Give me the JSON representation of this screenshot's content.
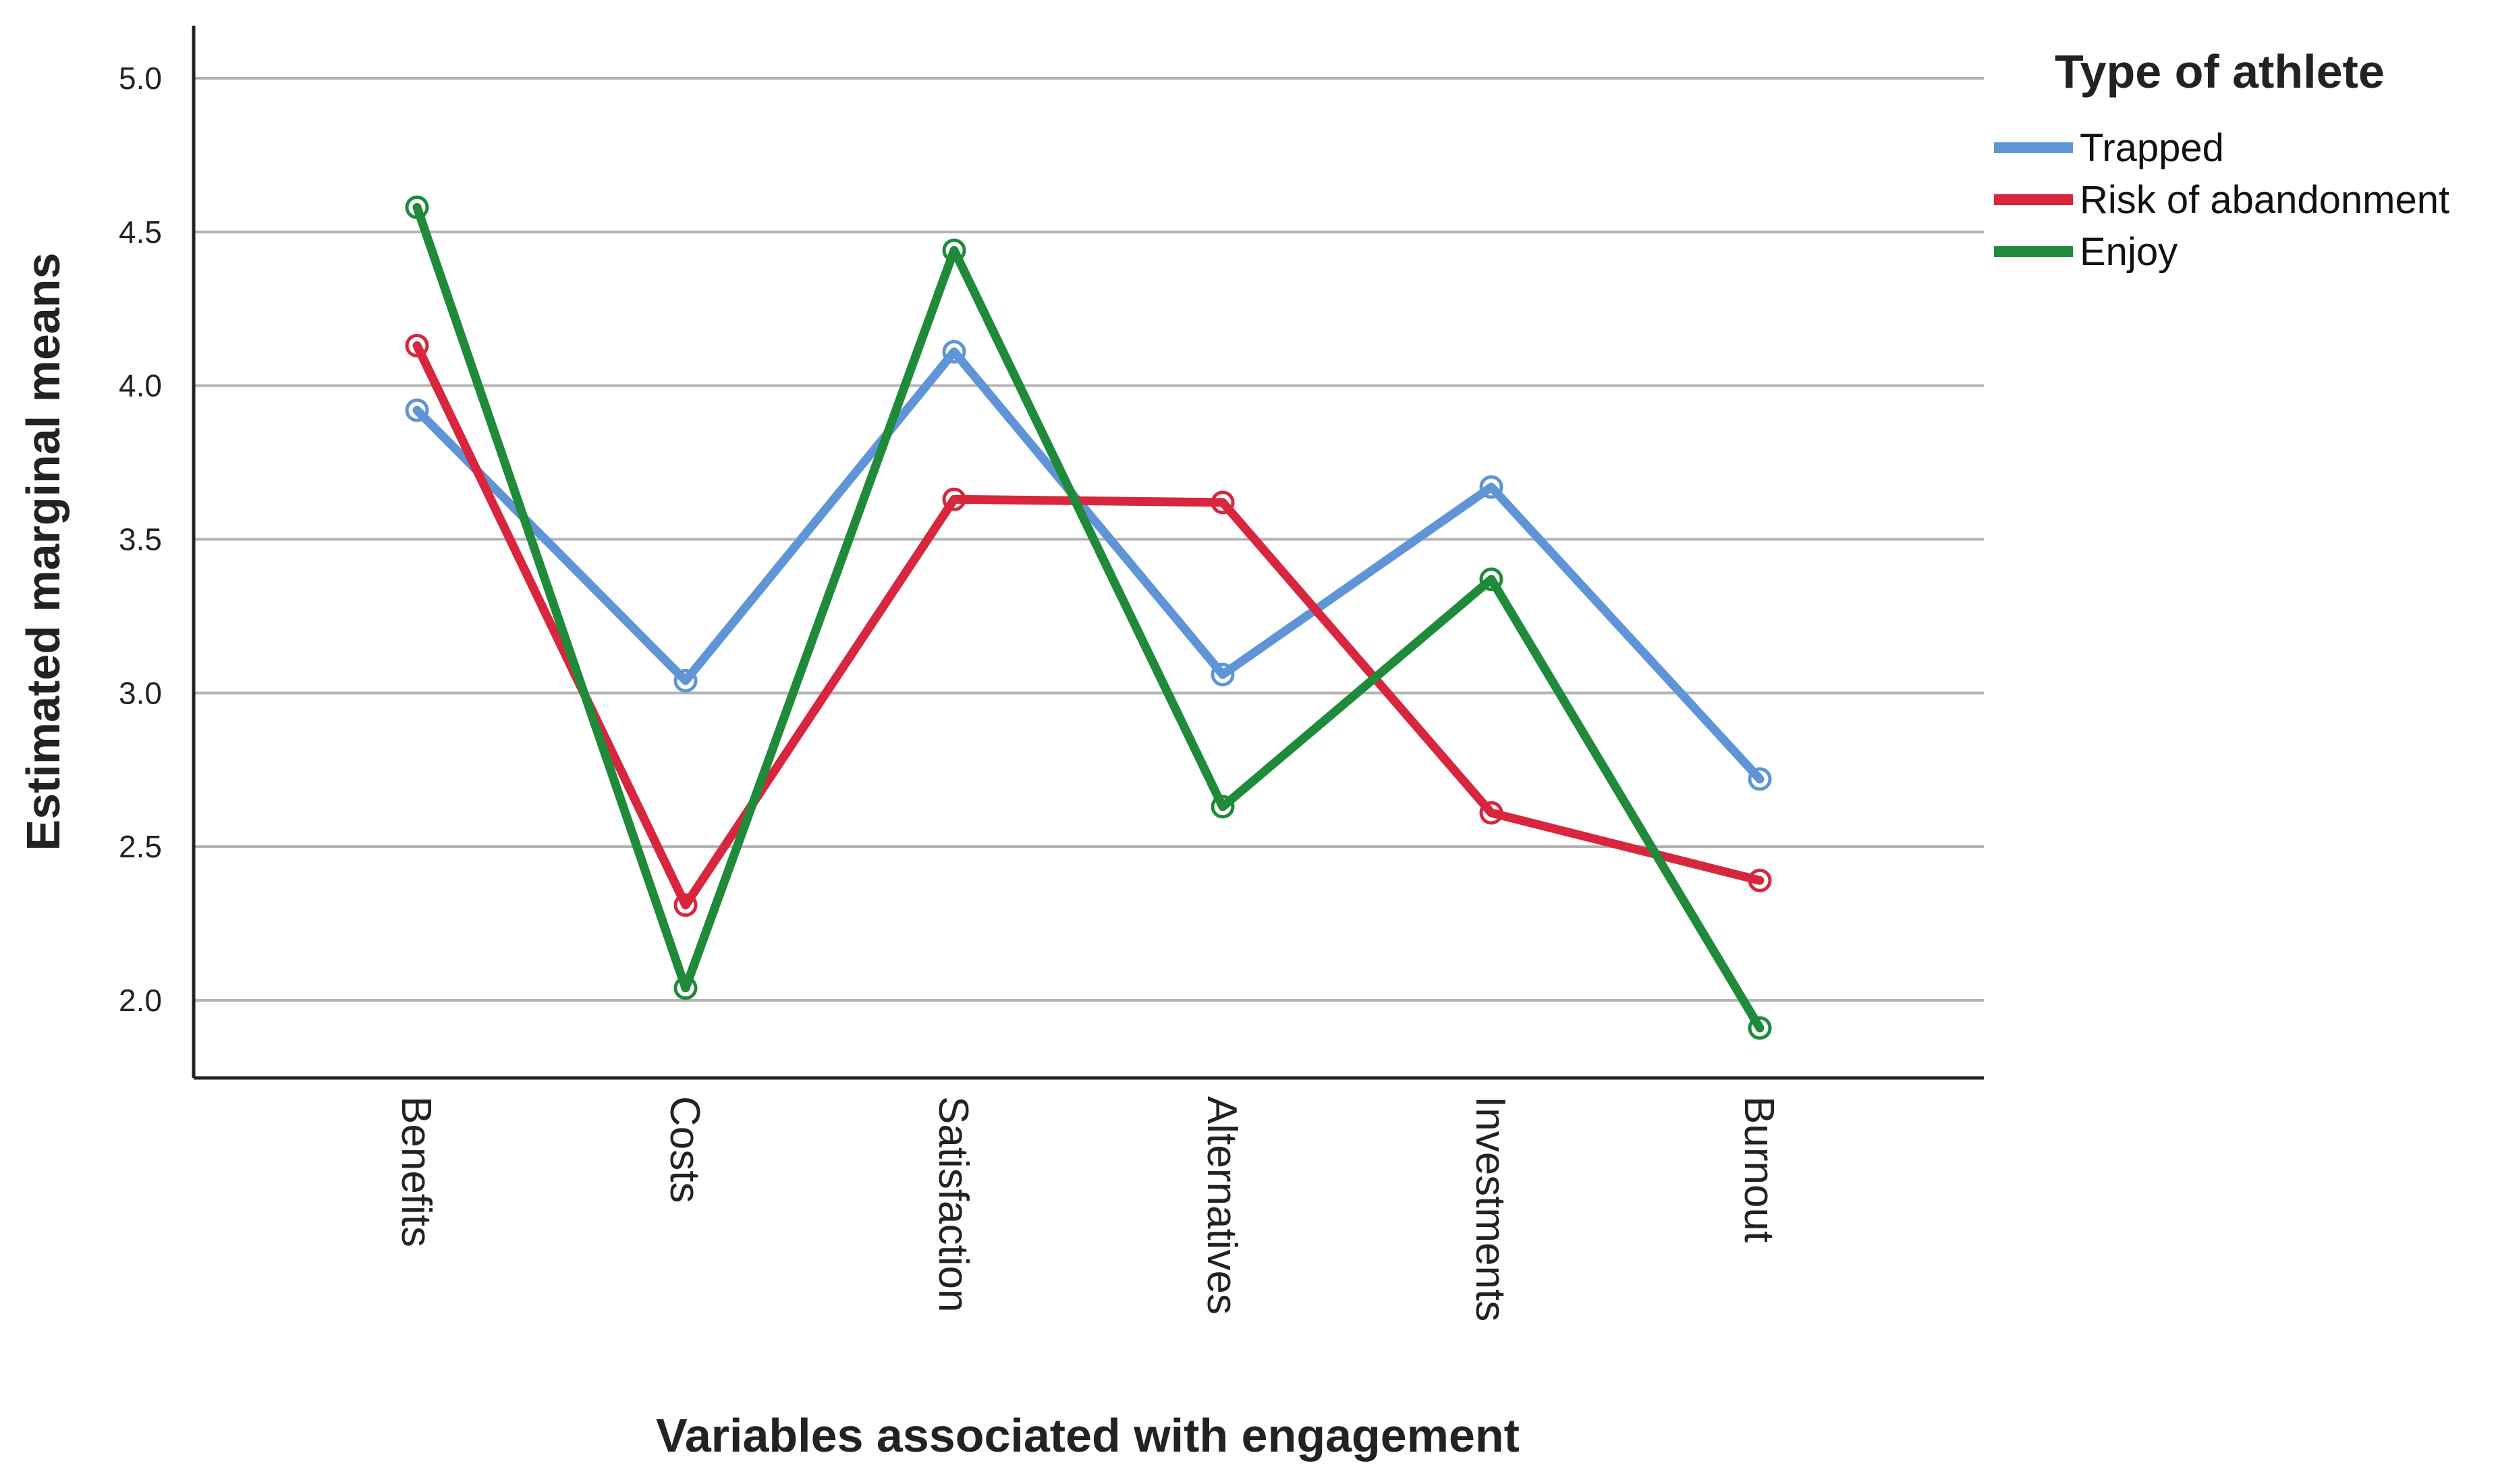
{
  "chart_data": {
    "type": "line",
    "title": "",
    "xlabel": "Variables associated with engagement",
    "ylabel": "Estimated marginal means",
    "categories": [
      "Benefits",
      "Costs",
      "Satisfaction",
      "Alternatives",
      "Investments",
      "Burnout"
    ],
    "y_ticks": [
      "2.0",
      "2.5",
      "3.0",
      "3.5",
      "4.0",
      "4.5",
      "5.0"
    ],
    "ylim": [
      1.75,
      5.15
    ],
    "grid": true,
    "legend": {
      "title": "Type of athlete",
      "placement": "top-right"
    },
    "series": [
      {
        "name": "Trapped",
        "color": "#5f95d6",
        "values": [
          3.92,
          3.04,
          4.11,
          3.06,
          3.67,
          2.72
        ]
      },
      {
        "name": "Risk of abandonment",
        "color": "#d7263d",
        "values": [
          4.13,
          2.31,
          3.63,
          3.62,
          2.61,
          2.39
        ]
      },
      {
        "name": "Enjoy",
        "color": "#1f8a3a",
        "values": [
          4.58,
          2.04,
          4.44,
          2.63,
          3.37,
          1.91
        ]
      }
    ]
  }
}
